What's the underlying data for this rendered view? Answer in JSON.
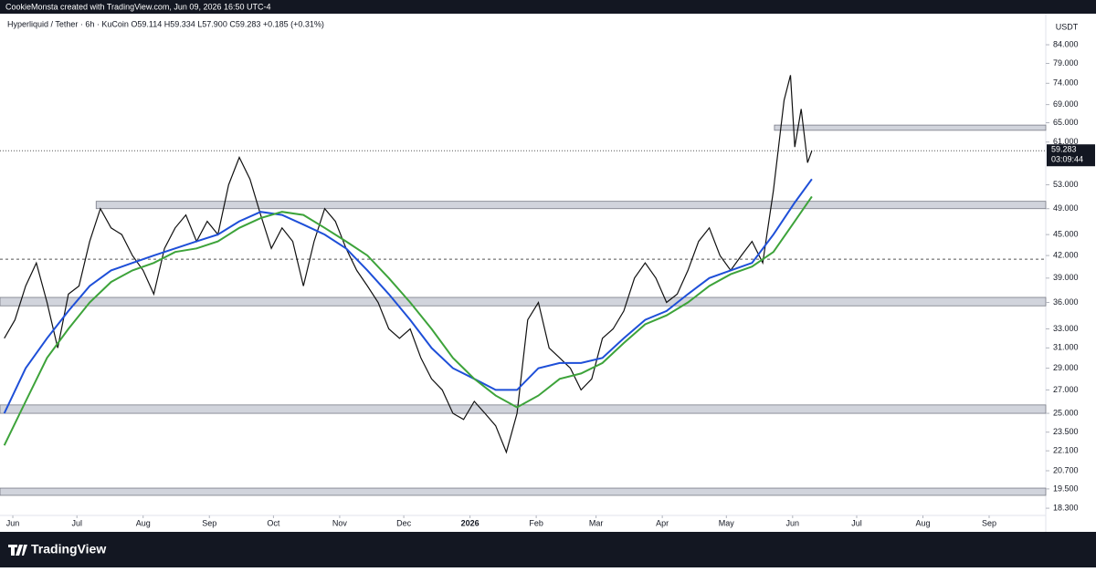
{
  "header": "CookieMonsta created with TradingView.com, Jun 09, 2026 16:50 UTC-4",
  "legend": "Hyperliquid / Tether · 6h · KuCoin  O59.114  H59.334  L57.900  C59.283  +0.185 (+0.31%)",
  "brand": "TradingView",
  "chart_data": {
    "type": "line",
    "log_scale": true,
    "currency": "USDT",
    "xlim": [
      -6,
      483.5
    ],
    "ylim": [
      17.87,
      92.2
    ],
    "xticks": [
      {
        "value": 0,
        "label": "Jun"
      },
      {
        "value": 30,
        "label": "Jul"
      },
      {
        "value": 61,
        "label": "Aug"
      },
      {
        "value": 92,
        "label": "Sep"
      },
      {
        "value": 122,
        "label": "Oct"
      },
      {
        "value": 153,
        "label": "Nov"
      },
      {
        "value": 183,
        "label": "Dec"
      },
      {
        "value": 214,
        "label": "2026"
      },
      {
        "value": 245,
        "label": "Feb"
      },
      {
        "value": 273,
        "label": "Mar"
      },
      {
        "value": 304,
        "label": "Apr"
      },
      {
        "value": 334,
        "label": "May"
      },
      {
        "value": 365,
        "label": "Jun"
      },
      {
        "value": 395,
        "label": "Jul"
      },
      {
        "value": 426,
        "label": "Aug"
      },
      {
        "value": 457,
        "label": "Sep"
      }
    ],
    "yticks": [
      {
        "value": 84,
        "label": "84.000"
      },
      {
        "value": 79,
        "label": "79.000"
      },
      {
        "value": 74,
        "label": "74.000"
      },
      {
        "value": 69,
        "label": "69.000"
      },
      {
        "value": 65,
        "label": "65.000"
      },
      {
        "value": 61,
        "label": "61.000"
      },
      {
        "value": 53,
        "label": "53.000"
      },
      {
        "value": 49,
        "label": "49.000"
      },
      {
        "value": 45,
        "label": "45.000"
      },
      {
        "value": 42,
        "label": "42.000"
      },
      {
        "value": 39,
        "label": "39.000"
      },
      {
        "value": 36,
        "label": "36.000"
      },
      {
        "value": 33,
        "label": "33.000"
      },
      {
        "value": 31,
        "label": "31.000"
      },
      {
        "value": 29,
        "label": "29.000"
      },
      {
        "value": 27,
        "label": "27.000"
      },
      {
        "value": 25,
        "label": "25.000"
      },
      {
        "value": 23.5,
        "label": "23.500"
      },
      {
        "value": 22.1,
        "label": "22.100"
      },
      {
        "value": 20.7,
        "label": "20.700"
      },
      {
        "value": 19.5,
        "label": "19.500"
      },
      {
        "value": 18.3,
        "label": "18.300"
      }
    ],
    "series": [
      {
        "color": "#111111",
        "x": [
          -4,
          1,
          6,
          11,
          16,
          21,
          26,
          31,
          36,
          41,
          46,
          51,
          56,
          61,
          66,
          71,
          76,
          81,
          86,
          91,
          96,
          101,
          106,
          111,
          116,
          121,
          126,
          131,
          136,
          141,
          146,
          151,
          156,
          161,
          166,
          171,
          176,
          181,
          186,
          191,
          196,
          201,
          206,
          211,
          216,
          221,
          226,
          231,
          236,
          241,
          246,
          251,
          256,
          261,
          266,
          271,
          276,
          281,
          286,
          291,
          296,
          301,
          306,
          311,
          316,
          321,
          326,
          331,
          336,
          341,
          346,
          351,
          356,
          361,
          364,
          366,
          369,
          372,
          374
        ],
        "values": [
          32,
          34,
          38,
          41,
          36,
          31,
          37,
          38,
          44,
          49,
          46,
          45,
          42,
          40,
          37,
          43,
          46,
          48,
          44,
          47,
          45,
          53,
          58,
          54,
          48,
          43,
          46,
          44,
          38,
          44,
          49,
          47,
          43,
          40,
          38,
          36,
          33,
          32,
          33,
          30,
          28,
          27,
          25,
          24.5,
          26,
          25,
          24,
          22,
          25,
          34,
          36,
          31,
          30,
          29,
          27,
          28,
          32,
          33,
          35,
          39,
          41,
          39,
          36,
          37,
          40,
          44,
          46,
          42,
          40,
          42,
          44,
          41,
          52,
          70,
          76,
          60,
          68,
          57,
          59.283
        ]
      },
      {
        "color": "#1e4fd8",
        "x": [
          -4,
          6,
          16,
          26,
          36,
          46,
          56,
          66,
          76,
          86,
          96,
          106,
          116,
          126,
          136,
          146,
          156,
          166,
          176,
          186,
          196,
          206,
          216,
          226,
          236,
          246,
          256,
          266,
          276,
          286,
          296,
          306,
          316,
          326,
          336,
          346,
          356,
          366,
          374
        ],
        "values": [
          25,
          29,
          32,
          35,
          38,
          40,
          41,
          42,
          43,
          44,
          45,
          47,
          48.5,
          48,
          46.5,
          45,
          43,
          40,
          37,
          34,
          31,
          29,
          28,
          27,
          27,
          29,
          29.5,
          29.5,
          30,
          32,
          34,
          35,
          37,
          39,
          40,
          41,
          45,
          50,
          54
        ]
      },
      {
        "color": "#3da33a",
        "x": [
          -4,
          6,
          16,
          26,
          36,
          46,
          56,
          66,
          76,
          86,
          96,
          106,
          116,
          126,
          136,
          146,
          156,
          166,
          176,
          186,
          196,
          206,
          216,
          226,
          236,
          246,
          256,
          266,
          276,
          286,
          296,
          306,
          316,
          326,
          336,
          346,
          356,
          366,
          374
        ],
        "values": [
          22.5,
          26,
          30,
          33,
          36,
          38.5,
          40,
          41,
          42.5,
          43,
          44,
          46,
          47.5,
          48.5,
          48,
          46,
          44,
          42,
          39,
          36,
          33,
          30,
          28,
          26.5,
          25.5,
          26.5,
          28,
          28.5,
          29.5,
          31.5,
          33.5,
          34.5,
          36,
          38,
          39.5,
          40.5,
          42.5,
          47,
          51
        ]
      }
    ],
    "zones": [
      {
        "from": -6,
        "low": 19.09,
        "high": 19.55
      },
      {
        "from": -6,
        "low": 25.0,
        "high": 25.7
      },
      {
        "from": -6,
        "low": 35.6,
        "high": 36.6
      },
      {
        "from": 39,
        "low": 49.0,
        "high": 50.2
      },
      {
        "from": 356.5,
        "low": 63.4,
        "high": 64.5
      }
    ],
    "dashed_level": 41.5,
    "last_price": {
      "value": 59.283,
      "label": "59.283",
      "countdown": "03:09:44"
    }
  }
}
